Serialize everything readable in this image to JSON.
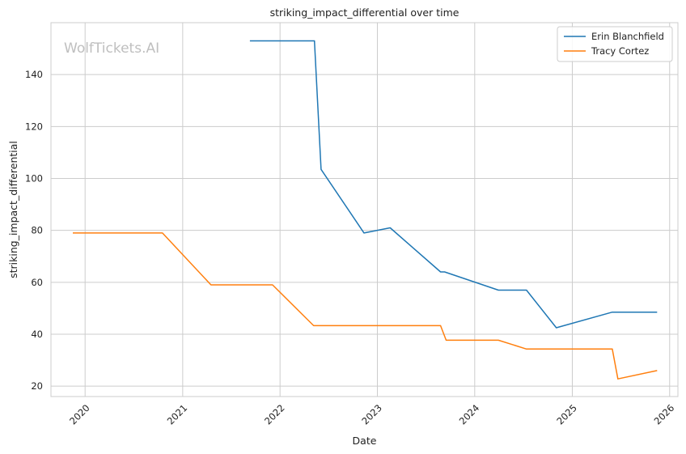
{
  "chart_data": {
    "type": "line",
    "title": "striking_impact_differential over time",
    "xlabel": "Date",
    "ylabel": "striking_impact_differential",
    "watermark": "WolfTickets.AI",
    "xlim": [
      "2019-08-26",
      "2026-02-01"
    ],
    "ylim": [
      16,
      160
    ],
    "x_ticks": [
      {
        "date": "2020-01-01",
        "label": "2020"
      },
      {
        "date": "2021-01-01",
        "label": "2021"
      },
      {
        "date": "2022-01-01",
        "label": "2022"
      },
      {
        "date": "2023-01-01",
        "label": "2023"
      },
      {
        "date": "2024-01-01",
        "label": "2024"
      },
      {
        "date": "2025-01-01",
        "label": "2025"
      },
      {
        "date": "2026-01-01",
        "label": "2026"
      }
    ],
    "y_ticks": [
      20,
      40,
      60,
      80,
      100,
      120,
      140
    ],
    "grid": true,
    "legend_position": "top-right",
    "series": [
      {
        "name": "Erin Blanchfield",
        "color": "#1f77b4",
        "points": [
          {
            "x": "2021-09-10",
            "y": 153
          },
          {
            "x": "2022-05-10",
            "y": 153
          },
          {
            "x": "2022-06-04",
            "y": 103.5
          },
          {
            "x": "2022-11-12",
            "y": 79
          },
          {
            "x": "2023-02-18",
            "y": 81
          },
          {
            "x": "2023-08-26",
            "y": 64
          },
          {
            "x": "2023-09-10",
            "y": 64
          },
          {
            "x": "2024-03-30",
            "y": 57
          },
          {
            "x": "2024-07-13",
            "y": 57
          },
          {
            "x": "2024-11-02",
            "y": 42.5
          },
          {
            "x": "2025-05-31",
            "y": 48.5
          },
          {
            "x": "2025-11-15",
            "y": 48.5
          }
        ]
      },
      {
        "name": "Tracy Cortez",
        "color": "#ff7f0e",
        "points": [
          {
            "x": "2019-11-16",
            "y": 79
          },
          {
            "x": "2020-10-17",
            "y": 79
          },
          {
            "x": "2021-04-17",
            "y": 59
          },
          {
            "x": "2021-12-04",
            "y": 59
          },
          {
            "x": "2022-05-07",
            "y": 43.3
          },
          {
            "x": "2023-08-26",
            "y": 43.3
          },
          {
            "x": "2023-09-16",
            "y": 37.7
          },
          {
            "x": "2024-03-30",
            "y": 37.7
          },
          {
            "x": "2024-07-13",
            "y": 34.3
          },
          {
            "x": "2025-05-31",
            "y": 34.3
          },
          {
            "x": "2025-06-21",
            "y": 22.8
          },
          {
            "x": "2025-11-15",
            "y": 26
          }
        ]
      }
    ]
  }
}
